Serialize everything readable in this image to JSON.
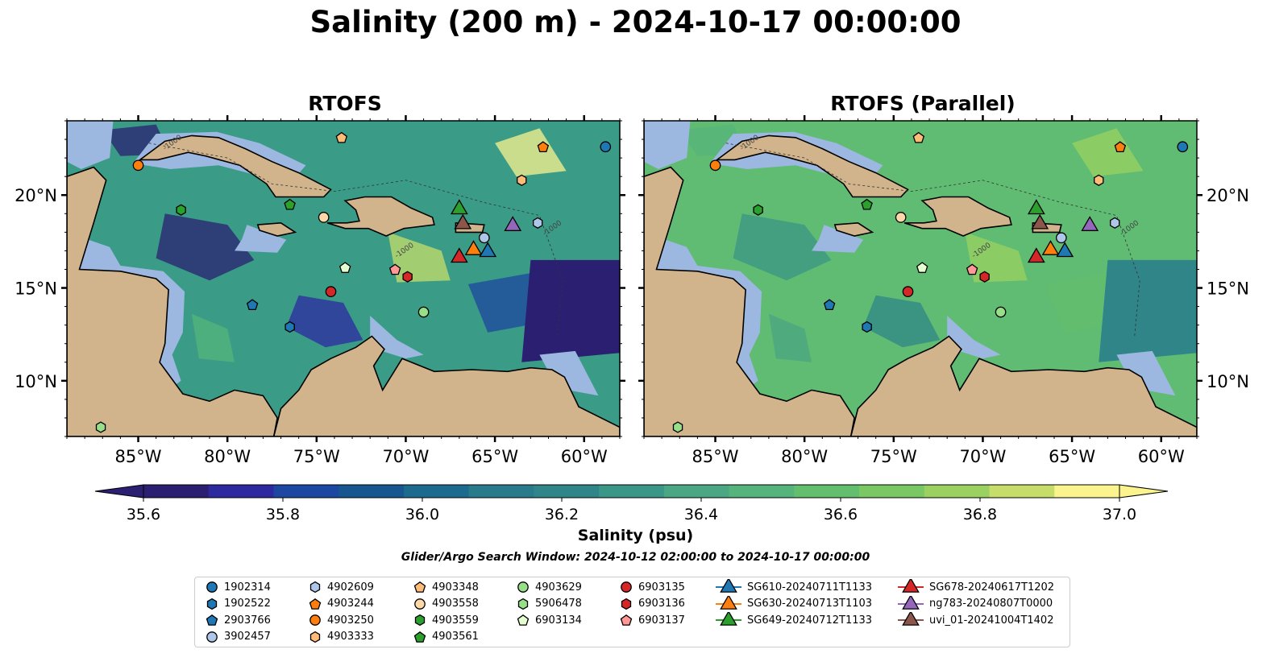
{
  "title": "Salinity (200 m) - 2024-10-17 00:00:00",
  "panels": [
    {
      "title": "RTOFS"
    },
    {
      "title": "RTOFS (Parallel)"
    }
  ],
  "map": {
    "lon_ticks": [
      "85°W",
      "80°W",
      "75°W",
      "70°W",
      "65°W",
      "60°W"
    ],
    "lat_ticks": [
      "20°N",
      "15°N",
      "10°N"
    ],
    "lon_extent": [
      -89,
      -58
    ],
    "lat_extent": [
      7,
      24
    ],
    "contour_labels": [
      "-1000"
    ],
    "colors": {
      "land": "#d2b48c",
      "shelf": "#9cb7e0",
      "ocean_low": "#2b1f72",
      "ocean_mid": "#2e7d87",
      "ocean_high": "#fbf38e"
    }
  },
  "colorbar": {
    "label": "Salinity (psu)",
    "ticks": [
      "35.6",
      "35.8",
      "36.0",
      "36.2",
      "36.4",
      "36.6",
      "36.8",
      "37.0"
    ],
    "vmin": 35.6,
    "vmax": 37.0,
    "colors": [
      "#2b1f72",
      "#2d2aa0",
      "#1d47a0",
      "#17568e",
      "#1d6a8f",
      "#297b8c",
      "#2f8588",
      "#3a9686",
      "#4aa683",
      "#54b47b",
      "#63bf6e",
      "#7ac864",
      "#9ad161",
      "#c7dd6a",
      "#fbf38e"
    ]
  },
  "search_window": "Glider/Argo Search Window: 2024-10-12 02:00:00 to 2024-10-17 00:00:00",
  "legend": [
    {
      "label": "1902314",
      "marker": "circle",
      "color": "#1f77b4"
    },
    {
      "label": "1902522",
      "marker": "hexagon",
      "color": "#1f77b4"
    },
    {
      "label": "2903766",
      "marker": "pentagon",
      "color": "#1f77b4"
    },
    {
      "label": "3902457",
      "marker": "circle",
      "color": "#aec7e8"
    },
    {
      "label": "4902609",
      "marker": "hexagon",
      "color": "#aec7e8"
    },
    {
      "label": "4903244",
      "marker": "pentagon",
      "color": "#ff7f0e"
    },
    {
      "label": "4903250",
      "marker": "circle",
      "color": "#ff7f0e"
    },
    {
      "label": "4903333",
      "marker": "hexagon",
      "color": "#ffbb78"
    },
    {
      "label": "4903348",
      "marker": "pentagon",
      "color": "#ffbb78"
    },
    {
      "label": "4903558",
      "marker": "circle",
      "color": "#ffd8a8"
    },
    {
      "label": "4903559",
      "marker": "hexagon",
      "color": "#2ca02c"
    },
    {
      "label": "4903561",
      "marker": "pentagon",
      "color": "#2ca02c"
    },
    {
      "label": "4903629",
      "marker": "circle",
      "color": "#98df8a"
    },
    {
      "label": "5906478",
      "marker": "hexagon",
      "color": "#98df8a"
    },
    {
      "label": "6903134",
      "marker": "pentagon",
      "color": "#e6ffd0"
    },
    {
      "label": "6903135",
      "marker": "circle",
      "color": "#d62728"
    },
    {
      "label": "6903136",
      "marker": "hexagon",
      "color": "#d62728"
    },
    {
      "label": "6903137",
      "marker": "pentagon",
      "color": "#ff9896"
    },
    {
      "label": "SG610-20240711T1133",
      "marker": "triangle-line",
      "color": "#1f77b4"
    },
    {
      "label": "SG630-20240713T1103",
      "marker": "triangle-line",
      "color": "#ff7f0e"
    },
    {
      "label": "SG649-20240712T1133",
      "marker": "triangle-line",
      "color": "#2ca02c"
    },
    {
      "label": "SG678-20240617T1202",
      "marker": "triangle-line",
      "color": "#d62728"
    },
    {
      "label": "ng783-20240807T0000",
      "marker": "triangle-line",
      "color": "#9467bd"
    },
    {
      "label": "uvi_01-20241004T1402",
      "marker": "triangle-line",
      "color": "#8c564b"
    }
  ],
  "observations": [
    {
      "id": "1902314",
      "lon": -58.8,
      "lat": 22.6
    },
    {
      "id": "4903244",
      "lon": -62.3,
      "lat": 22.6
    },
    {
      "id": "4903250",
      "lon": -85.0,
      "lat": 21.6
    },
    {
      "id": "4903348",
      "lon": -73.6,
      "lat": 23.1
    },
    {
      "id": "4903333",
      "lon": -63.5,
      "lat": 20.8
    },
    {
      "id": "4903559",
      "lon": -82.6,
      "lat": 19.2
    },
    {
      "id": "4903561",
      "lon": -76.5,
      "lat": 19.5
    },
    {
      "id": "4903558",
      "lon": -74.6,
      "lat": 18.8
    },
    {
      "id": "4902609",
      "lon": -62.6,
      "lat": 18.5
    },
    {
      "id": "3902457",
      "lon": -65.6,
      "lat": 17.7
    },
    {
      "id": "6903134",
      "lon": -73.4,
      "lat": 16.1
    },
    {
      "id": "6903137",
      "lon": -70.6,
      "lat": 16.0
    },
    {
      "id": "6903136",
      "lon": -69.9,
      "lat": 15.6
    },
    {
      "id": "6903135",
      "lon": -74.2,
      "lat": 14.8
    },
    {
      "id": "2903766",
      "lon": -78.6,
      "lat": 14.1
    },
    {
      "id": "4903629",
      "lon": -69.0,
      "lat": 13.7
    },
    {
      "id": "1902522",
      "lon": -76.5,
      "lat": 12.9
    },
    {
      "id": "5906478",
      "lon": -87.1,
      "lat": 7.5
    },
    {
      "id": "SG649-20240712T1133",
      "lon": -67.0,
      "lat": 19.3
    },
    {
      "id": "uvi_01-20241004T1402",
      "lon": -66.8,
      "lat": 18.5
    },
    {
      "id": "ng783-20240807T0000",
      "lon": -64.0,
      "lat": 18.4
    },
    {
      "id": "SG630-20240713T1103",
      "lon": -66.2,
      "lat": 17.1
    },
    {
      "id": "SG610-20240711T1133",
      "lon": -65.4,
      "lat": 17.0
    },
    {
      "id": "SG678-20240617T1202",
      "lon": -67.0,
      "lat": 16.7
    }
  ]
}
